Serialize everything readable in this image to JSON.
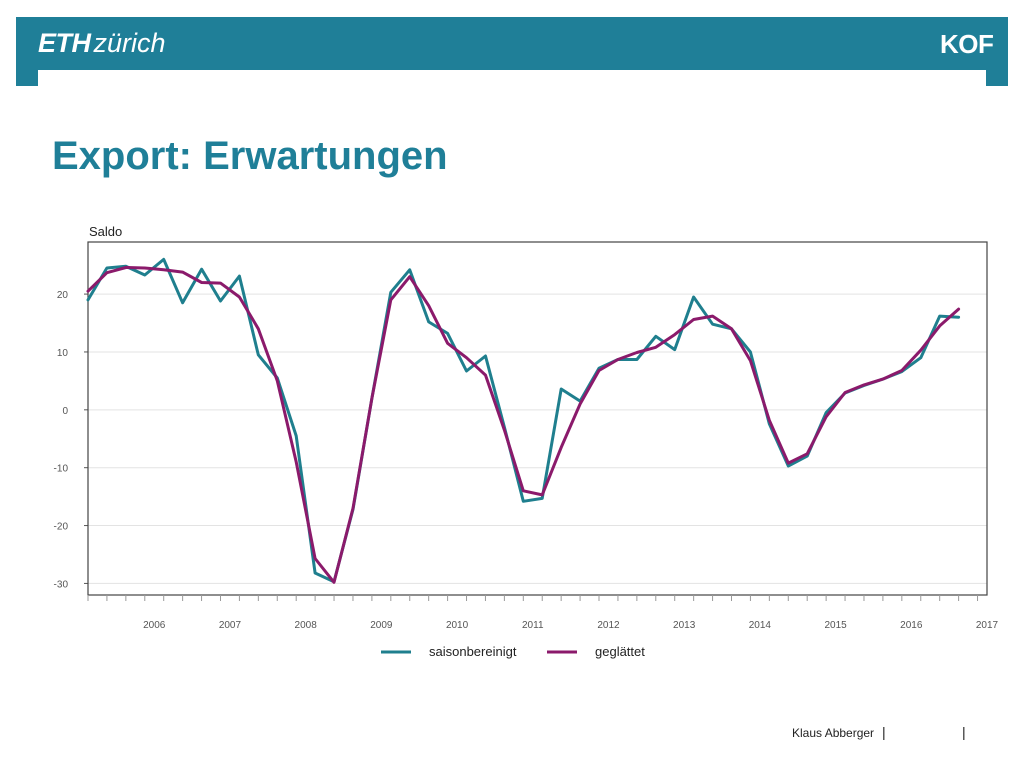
{
  "header": {
    "logo_left_bold": "ETH",
    "logo_left_rest": "zürich",
    "logo_right": "KOF",
    "brand_color": "#1f7f98"
  },
  "title": "Export: Erwartungen",
  "footer": {
    "author": "Klaus Abberger",
    "separator": "|"
  },
  "chart_data": {
    "type": "line",
    "ylabel": "Saldo",
    "xlabel": "",
    "ylim": [
      -32,
      29
    ],
    "yticks": [
      20,
      10,
      0,
      -10,
      -20,
      -30
    ],
    "xlim": [
      2005.625,
      2017.5
    ],
    "xticks": [
      "2006",
      "2007",
      "2008",
      "2009",
      "2010",
      "2011",
      "2012",
      "2013",
      "2014",
      "2015",
      "2016",
      "2017"
    ],
    "grid": "horizontal",
    "legend_position": "bottom",
    "x": [
      2005.625,
      2005.875,
      2006.125,
      2006.375,
      2006.625,
      2006.875,
      2007.125,
      2007.375,
      2007.625,
      2007.875,
      2008.125,
      2008.375,
      2008.625,
      2008.875,
      2009.125,
      2009.375,
      2009.625,
      2009.875,
      2010.125,
      2010.375,
      2010.625,
      2010.875,
      2011.125,
      2011.375,
      2011.625,
      2011.875,
      2012.125,
      2012.375,
      2012.625,
      2012.875,
      2013.125,
      2013.375,
      2013.625,
      2013.875,
      2014.125,
      2014.375,
      2014.625,
      2014.875,
      2015.125,
      2015.375,
      2015.625,
      2015.875,
      2016.125,
      2016.375,
      2016.625,
      2016.875,
      2017.125
    ],
    "series": [
      {
        "name": "saisonbereinigt",
        "color": "#1f7f8e",
        "values": [
          19,
          24.5,
          24.8,
          23.3,
          26,
          18.5,
          24.3,
          18.8,
          23.1,
          9.5,
          5.5,
          -4.5,
          -28.2,
          -29.7,
          -17.2,
          2,
          20.3,
          24.2,
          15.2,
          13.2,
          6.7,
          9.3,
          -3,
          -15.8,
          -15.3,
          3.6,
          1.5,
          7.2,
          8.7,
          8.7,
          12.7,
          10.4,
          19.5,
          14.8,
          14,
          10,
          -2.4,
          -9.7,
          -8,
          -0.5,
          2.9,
          4.2,
          5.3,
          6.6,
          9,
          16.2,
          16
        ]
      },
      {
        "name": "geglättet",
        "color": "#8b1a6b",
        "values": [
          20.5,
          23.7,
          24.6,
          24.5,
          24.2,
          23.8,
          22,
          21.9,
          19.5,
          14,
          5,
          -9,
          -25.7,
          -29.8,
          -17,
          2,
          19,
          23,
          18,
          11.5,
          9,
          6,
          -3.5,
          -14,
          -14.7,
          -6.5,
          1,
          6.8,
          8.7,
          9.9,
          10.8,
          13,
          15.6,
          16.2,
          14,
          8.5,
          -1.8,
          -9.2,
          -7.6,
          -1.2,
          3,
          4.3,
          5.3,
          6.8,
          10.3,
          14.5,
          17.4
        ]
      }
    ]
  }
}
